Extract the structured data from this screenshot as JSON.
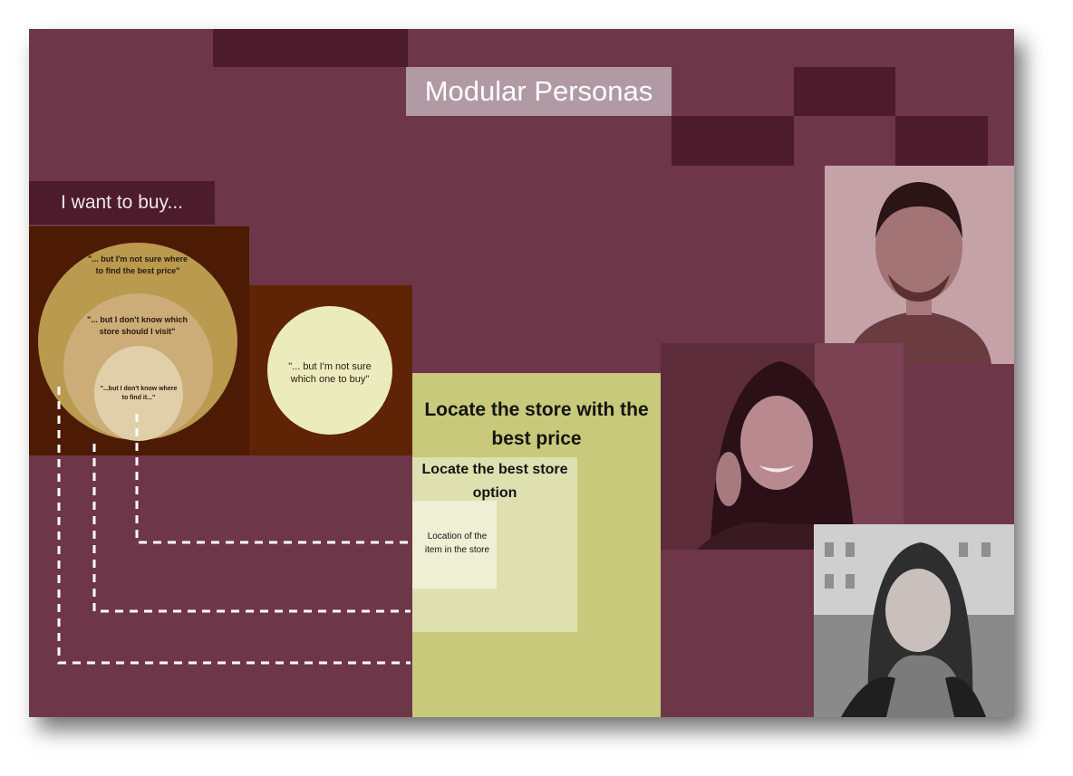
{
  "title": "Modular Personas",
  "want_label": "I want to buy...",
  "circles": {
    "outer": "\"... but I'm not sure where to find the best price\"",
    "middle": "\"... but I don't know which store should I visit\"",
    "inner": "\"...but I don't know where to find it...\"",
    "side": "\"... but I'm not sure which one to buy\""
  },
  "goals": {
    "large": "Locate the store with the best price",
    "medium": "Locate the best store option",
    "small": "Location of the item in the store"
  },
  "colors": {
    "background": "#6e3749",
    "dark_accent": "#4c1b2c",
    "circle_outer": "#b99a4e",
    "circle_middle": "#ccad77",
    "circle_inner": "#e0cfa8",
    "circle_side": "#ecebbd",
    "green": "#c8c97b",
    "dashed_line": "#ffffff"
  }
}
